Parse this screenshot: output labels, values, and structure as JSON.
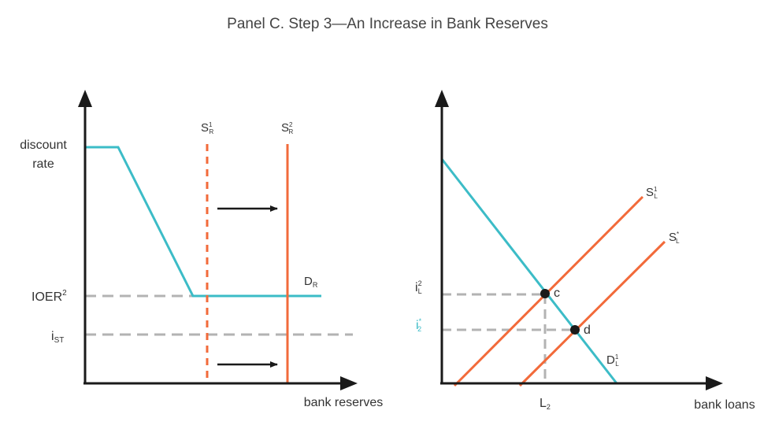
{
  "title": "Panel C. Step 3—An Increase in Bank Reserves",
  "colors": {
    "demand": "#3cbcc7",
    "supply": "#f26a3a",
    "axis": "#1a1a1a",
    "guide": "#b3b3b3",
    "highlight_label": "#3cbcc7"
  },
  "left_panel": {
    "y_labels": {
      "discount_line1": "discount",
      "discount_line2": "rate",
      "ioer": "IOER",
      "ioer_sup": "2",
      "ist": "i",
      "ist_sub": "ST"
    },
    "x_label": "bank reserves",
    "supply1": {
      "base": "S",
      "sup": "1",
      "sub": "R"
    },
    "supply2": {
      "base": "S",
      "sup": "2",
      "sub": "R"
    },
    "demand": {
      "base": "D",
      "sub": "R"
    }
  },
  "right_panel": {
    "y_labels": {
      "i2": {
        "base": "i",
        "sup": "2",
        "sub": "L"
      },
      "i2_star": {
        "base": "i",
        "sup": "*",
        "sub": "2"
      }
    },
    "x_label": "bank loans",
    "l2": {
      "base": "L",
      "sub": "2"
    },
    "supply1": {
      "base": "S",
      "sup": "1",
      "sub": "L"
    },
    "supply_star": {
      "base": "S",
      "sup": "*",
      "sub": "L"
    },
    "demand": {
      "base": "D",
      "sup": "1",
      "sub": "L"
    },
    "points": {
      "c": "c",
      "d": "d"
    }
  }
}
